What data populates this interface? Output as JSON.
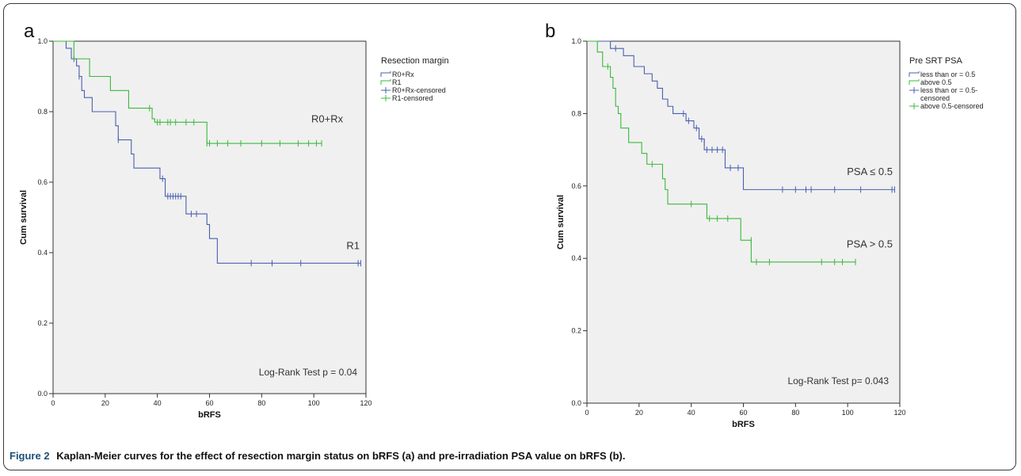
{
  "caption": {
    "label": "Figure 2",
    "text": "Kaplan-Meier curves for the effect of resection margin status on bRFS (a) and pre-irradiation PSA value on bRFS (b)."
  },
  "chart_data": [
    {
      "type": "line",
      "panel": "a",
      "xlabel": "bRFS",
      "ylabel": "Cum survival",
      "xlim": [
        0,
        120
      ],
      "ylim": [
        0,
        1.0
      ],
      "x_ticks": [
        0,
        20,
        40,
        60,
        80,
        100,
        120
      ],
      "y_ticks": [
        "0.0",
        "0.2",
        "0.4",
        "0.6",
        "0.8",
        "1.0"
      ],
      "legend": {
        "title": "Resection margin",
        "placement": "right",
        "entries": [
          "R0+Rx",
          "R1",
          "R0+Rx-censored",
          "R1-censored"
        ]
      },
      "annotation": "Log-Rank Test p = 0.04",
      "series": [
        {
          "name": "R0+Rx",
          "color": "#4a5fb0",
          "curve_label": "R0+Rx",
          "steps": [
            [
              0,
              1.0
            ],
            [
              5,
              0.98
            ],
            [
              7,
              0.95
            ],
            [
              9,
              0.93
            ],
            [
              10,
              0.9
            ],
            [
              11,
              0.86
            ],
            [
              12,
              0.84
            ],
            [
              15,
              0.8
            ],
            [
              24,
              0.76
            ],
            [
              25,
              0.72
            ],
            [
              30,
              0.68
            ],
            [
              31,
              0.64
            ],
            [
              41,
              0.61
            ],
            [
              43,
              0.56
            ],
            [
              50,
              0.56
            ],
            [
              51,
              0.51
            ],
            [
              57,
              0.51
            ],
            [
              59,
              0.48
            ],
            [
              60,
              0.44
            ],
            [
              63,
              0.37
            ],
            [
              118,
              0.37
            ]
          ],
          "censored": [
            [
              8,
              0.95
            ],
            [
              10,
              0.9
            ],
            [
              25,
              0.72
            ],
            [
              42,
              0.61
            ],
            [
              44,
              0.56
            ],
            [
              45,
              0.56
            ],
            [
              46,
              0.56
            ],
            [
              47,
              0.56
            ],
            [
              48,
              0.56
            ],
            [
              49,
              0.56
            ],
            [
              53,
              0.51
            ],
            [
              55,
              0.51
            ],
            [
              76,
              0.37
            ],
            [
              84,
              0.37
            ],
            [
              95,
              0.37
            ],
            [
              117,
              0.37
            ],
            [
              118,
              0.37
            ]
          ]
        },
        {
          "name": "R1",
          "color": "#3cb83c",
          "curve_label": "R1",
          "steps": [
            [
              0,
              1.0
            ],
            [
              8,
              0.95
            ],
            [
              14,
              0.9
            ],
            [
              22,
              0.86
            ],
            [
              29,
              0.81
            ],
            [
              33,
              0.81
            ],
            [
              38,
              0.78
            ],
            [
              39,
              0.77
            ],
            [
              58,
              0.77
            ],
            [
              59,
              0.71
            ],
            [
              103,
              0.71
            ]
          ],
          "censored": [
            [
              37,
              0.81
            ],
            [
              40,
              0.77
            ],
            [
              41,
              0.77
            ],
            [
              44,
              0.77
            ],
            [
              45,
              0.77
            ],
            [
              47,
              0.77
            ],
            [
              51,
              0.77
            ],
            [
              54,
              0.77
            ],
            [
              59,
              0.71
            ],
            [
              60,
              0.71
            ],
            [
              63,
              0.71
            ],
            [
              67,
              0.71
            ],
            [
              72,
              0.71
            ],
            [
              80,
              0.71
            ],
            [
              87,
              0.71
            ],
            [
              94,
              0.71
            ],
            [
              98,
              0.71
            ],
            [
              101,
              0.71
            ],
            [
              103,
              0.71
            ]
          ]
        }
      ]
    },
    {
      "type": "line",
      "panel": "b",
      "xlabel": "bRFS",
      "ylabel": "Cum survival",
      "xlim": [
        0,
        120
      ],
      "ylim": [
        0,
        1.0
      ],
      "x_ticks": [
        0,
        20,
        40,
        60,
        80,
        100,
        120
      ],
      "y_ticks": [
        "0.0",
        "0.2",
        "0.4",
        "0.6",
        "0.8",
        "1.0"
      ],
      "legend": {
        "title": "Pre SRT PSA",
        "placement": "right",
        "entries": [
          "less than or = 0.5",
          "above 0.5",
          "less than or = 0.5-censored",
          "above 0.5-censored"
        ]
      },
      "annotation": "Log-Rank Test p= 0.043",
      "series": [
        {
          "name": "less than or = 0.5",
          "color": "#4a5fb0",
          "curve_label": "PSA ≤ 0.5",
          "steps": [
            [
              0,
              1.0
            ],
            [
              9,
              0.98
            ],
            [
              14,
              0.96
            ],
            [
              18,
              0.93
            ],
            [
              22,
              0.91
            ],
            [
              25,
              0.89
            ],
            [
              27,
              0.87
            ],
            [
              29,
              0.84
            ],
            [
              31,
              0.82
            ],
            [
              33,
              0.8
            ],
            [
              37,
              0.8
            ],
            [
              38,
              0.78
            ],
            [
              41,
              0.76
            ],
            [
              43,
              0.73
            ],
            [
              45,
              0.7
            ],
            [
              52,
              0.7
            ],
            [
              53,
              0.65
            ],
            [
              59,
              0.65
            ],
            [
              60,
              0.59
            ],
            [
              118,
              0.59
            ]
          ],
          "censored": [
            [
              11,
              0.98
            ],
            [
              37,
              0.8
            ],
            [
              39,
              0.78
            ],
            [
              42,
              0.76
            ],
            [
              43,
              0.75
            ],
            [
              44,
              0.73
            ],
            [
              45,
              0.72
            ],
            [
              46,
              0.7
            ],
            [
              48,
              0.7
            ],
            [
              50,
              0.7
            ],
            [
              52,
              0.7
            ],
            [
              55,
              0.65
            ],
            [
              58,
              0.65
            ],
            [
              75,
              0.59
            ],
            [
              80,
              0.59
            ],
            [
              84,
              0.59
            ],
            [
              86,
              0.59
            ],
            [
              95,
              0.59
            ],
            [
              105,
              0.59
            ],
            [
              117,
              0.59
            ],
            [
              118,
              0.59
            ]
          ]
        },
        {
          "name": "above 0.5",
          "color": "#3cb83c",
          "curve_label": "PSA > 0.5",
          "steps": [
            [
              0,
              1.0
            ],
            [
              4,
              0.97
            ],
            [
              6,
              0.93
            ],
            [
              9,
              0.9
            ],
            [
              10,
              0.87
            ],
            [
              11,
              0.82
            ],
            [
              12,
              0.8
            ],
            [
              13,
              0.76
            ],
            [
              16,
              0.72
            ],
            [
              21,
              0.69
            ],
            [
              23,
              0.66
            ],
            [
              29,
              0.62
            ],
            [
              30,
              0.59
            ],
            [
              31,
              0.55
            ],
            [
              45,
              0.55
            ],
            [
              46,
              0.51
            ],
            [
              58,
              0.51
            ],
            [
              59,
              0.45
            ],
            [
              63,
              0.39
            ],
            [
              103,
              0.39
            ]
          ],
          "censored": [
            [
              8,
              0.93
            ],
            [
              25,
              0.66
            ],
            [
              40,
              0.55
            ],
            [
              47,
              0.51
            ],
            [
              50,
              0.51
            ],
            [
              54,
              0.51
            ],
            [
              63,
              0.45
            ],
            [
              65,
              0.39
            ],
            [
              70,
              0.39
            ],
            [
              90,
              0.39
            ],
            [
              95,
              0.39
            ],
            [
              98,
              0.39
            ],
            [
              103,
              0.39
            ]
          ]
        }
      ]
    }
  ]
}
